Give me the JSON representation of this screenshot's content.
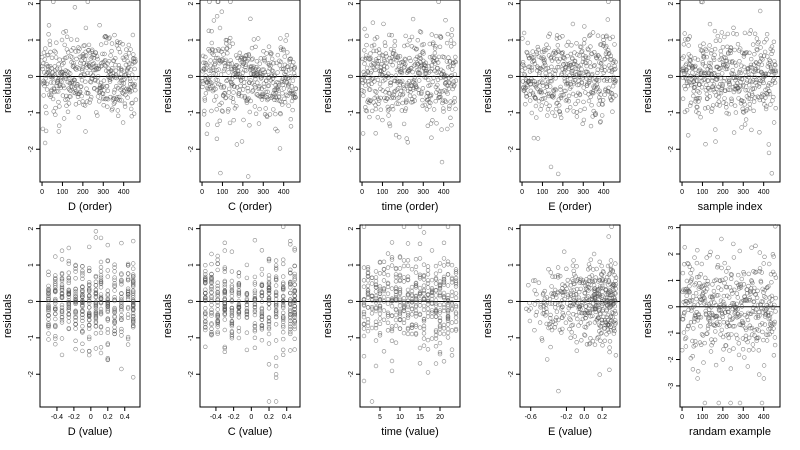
{
  "figure": {
    "rows": 2,
    "cols": 5,
    "colors": {
      "axis": "#000000",
      "points": "#555555",
      "zero_line": "#000000",
      "background": "#ffffff"
    }
  },
  "chart_data": [
    {
      "type": "scatter",
      "xlabel": "D (order)",
      "ylabel": "residuals",
      "xlim": [
        -10,
        480
      ],
      "ylim": [
        -2.9,
        2.1
      ],
      "xticks": [
        0,
        100,
        200,
        300,
        400
      ],
      "yticks": [
        -2,
        -1,
        0,
        1,
        2
      ],
      "hline": 0,
      "point_count": 460,
      "pattern": "order",
      "x_range": [
        1,
        460
      ],
      "spread": 0.55
    },
    {
      "type": "scatter",
      "xlabel": "C (order)",
      "ylabel": "residuals",
      "xlim": [
        -10,
        480
      ],
      "ylim": [
        -2.9,
        2.1
      ],
      "xticks": [
        0,
        100,
        200,
        300,
        400
      ],
      "yticks": [
        -2,
        -1,
        0,
        1,
        2
      ],
      "hline": 0,
      "point_count": 460,
      "pattern": "order",
      "x_range": [
        1,
        460
      ],
      "spread": 0.55
    },
    {
      "type": "scatter",
      "xlabel": "time (order)",
      "ylabel": "residuals",
      "xlim": [
        -10,
        480
      ],
      "ylim": [
        -2.9,
        2.1
      ],
      "xticks": [
        0,
        100,
        200,
        300,
        400
      ],
      "yticks": [
        -2,
        -1,
        0,
        1,
        2
      ],
      "hline": 0,
      "point_count": 460,
      "pattern": "order",
      "x_range": [
        1,
        460
      ],
      "spread": 0.55
    },
    {
      "type": "scatter",
      "xlabel": "E (order)",
      "ylabel": "residuals",
      "xlim": [
        -10,
        480
      ],
      "ylim": [
        -2.9,
        2.1
      ],
      "xticks": [
        0,
        100,
        200,
        300,
        400
      ],
      "yticks": [
        -2,
        -1,
        0,
        1,
        2
      ],
      "hline": 0,
      "point_count": 460,
      "pattern": "order",
      "x_range": [
        1,
        460
      ],
      "spread": 0.55
    },
    {
      "type": "scatter",
      "xlabel": "sample index",
      "ylabel": "residuals",
      "xlim": [
        -10,
        480
      ],
      "ylim": [
        -2.9,
        2.1
      ],
      "xticks": [
        0,
        100,
        200,
        300,
        400
      ],
      "yticks": [
        -2,
        -1,
        0,
        1,
        2
      ],
      "hline": 0,
      "point_count": 460,
      "pattern": "order",
      "x_range": [
        1,
        460
      ],
      "spread": 0.55
    },
    {
      "type": "scatter",
      "xlabel": "D (value)",
      "ylabel": "residuals",
      "xlim": [
        -0.6,
        0.58
      ],
      "ylim": [
        -2.9,
        2.1
      ],
      "xticks": [
        -0.4,
        -0.2,
        0.0,
        0.2,
        0.4
      ],
      "yticks": [
        -2,
        -1,
        0,
        1,
        2
      ],
      "hline": 0,
      "point_count": 460,
      "pattern": "discrete",
      "x_levels": [
        -0.5,
        -0.42,
        -0.34,
        -0.26,
        -0.18,
        -0.1,
        -0.02,
        0.06,
        0.12,
        0.2,
        0.28,
        0.36,
        0.44,
        0.5
      ],
      "spread": 0.55
    },
    {
      "type": "scatter",
      "xlabel": "C (value)",
      "ylabel": "residuals",
      "xlim": [
        -0.58,
        0.55
      ],
      "ylim": [
        -2.9,
        2.1
      ],
      "xticks": [
        -0.4,
        -0.2,
        0.0,
        0.2,
        0.4
      ],
      "yticks": [
        -2,
        -1,
        0,
        1,
        2
      ],
      "hline": 0,
      "point_count": 460,
      "pattern": "discrete",
      "x_levels": [
        -0.52,
        -0.45,
        -0.38,
        -0.3,
        -0.22,
        -0.14,
        -0.05,
        0.04,
        0.12,
        0.2,
        0.28,
        0.36,
        0.44,
        0.49
      ],
      "spread": 0.55
    },
    {
      "type": "scatter",
      "xlabel": "time (value)",
      "ylabel": "residuals",
      "xlim": [
        0,
        25
      ],
      "ylim": [
        -2.9,
        2.1
      ],
      "xticks": [
        5,
        10,
        15,
        20
      ],
      "yticks": [
        -2,
        -1,
        0,
        1,
        2
      ],
      "hline": 0,
      "point_count": 460,
      "pattern": "discrete",
      "x_levels": [
        1,
        2,
        3,
        4,
        5,
        6,
        7,
        8,
        9,
        10,
        11,
        12,
        13,
        14,
        15,
        16,
        17,
        18,
        19,
        20,
        21,
        22,
        23,
        24
      ],
      "spread": 0.55
    },
    {
      "type": "scatter",
      "xlabel": "E (value)",
      "ylabel": "residuals",
      "xlim": [
        -0.72,
        0.4
      ],
      "ylim": [
        -2.9,
        2.1
      ],
      "xticks": [
        -0.6,
        -0.2,
        0.0,
        0.2
      ],
      "xtick_labels": [
        "-0.6",
        "-0.2",
        "0.0",
        "0.2"
      ],
      "yticks": [
        -2,
        -1,
        0,
        1,
        2
      ],
      "hline": 0,
      "point_count": 460,
      "pattern": "skewed",
      "x_range": [
        -0.68,
        0.36
      ],
      "spread": 0.55
    },
    {
      "type": "scatter",
      "xlabel": "randam example",
      "ylabel": "residuals",
      "xlim": [
        -10,
        480
      ],
      "ylim": [
        -3.8,
        3.1
      ],
      "xticks": [
        0,
        100,
        200,
        300,
        400
      ],
      "yticks": [
        -3,
        -2,
        -1,
        0,
        1,
        2,
        3
      ],
      "hline": 0,
      "point_count": 460,
      "pattern": "order",
      "x_range": [
        1,
        460
      ],
      "spread": 1.0
    }
  ]
}
